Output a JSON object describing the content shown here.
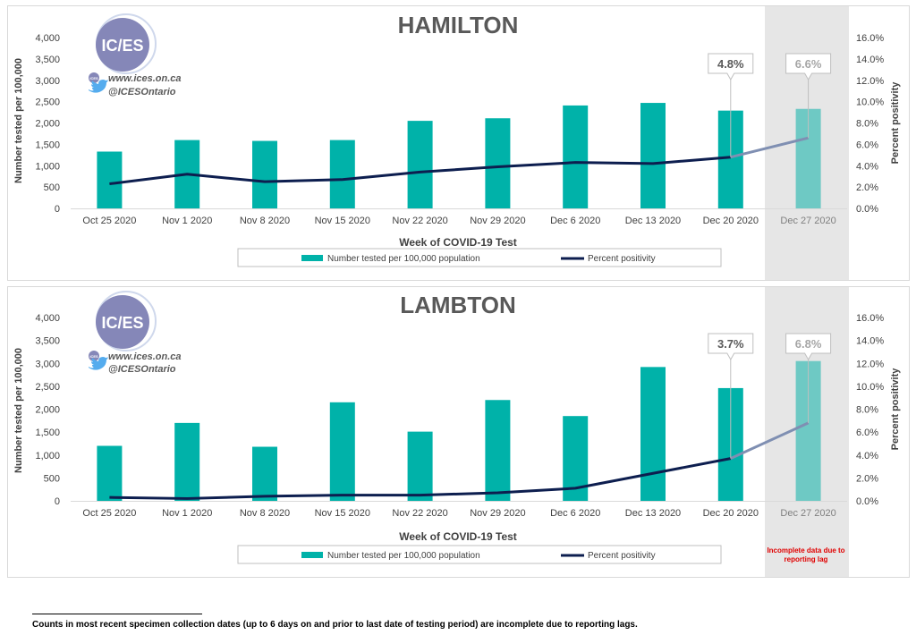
{
  "legend": {
    "bar_label": "Number tested per 100,000 population",
    "line_label": "Percent positivity"
  },
  "logo": {
    "text": "IC/ES",
    "website": "www.ices.on.ca",
    "twitter": "@ICESOntario",
    "small_badge": "ICES"
  },
  "incomplete_note": "Incomplete data due to reporting lag",
  "footnote": "Counts in most recent specimen collection dates (up to 6 days on and prior to last date of testing period) are incomplete due to reporting lags.",
  "colors": {
    "bar": "#00b2a9",
    "bar_incomplete": "#6ec9c4",
    "line": "#0d1e4f",
    "line_incomplete": "#7f8fb2",
    "shade": "#e6e6e6",
    "title": "#595959",
    "callout": "#595959",
    "callout_incomplete": "#a6a6a6",
    "inc_note": "#e00000"
  },
  "chart_data": [
    {
      "type": "bar",
      "title": "HAMILTON",
      "xlabel": "Week of COVID-19 Test",
      "ylabel": "Number tested per 100,000",
      "y2label": "Percent positivity",
      "ylim": [
        0,
        4000
      ],
      "y2lim": [
        0,
        16
      ],
      "yticks": [
        "0",
        "500",
        "1,000",
        "1,500",
        "2,000",
        "2,500",
        "3,000",
        "3,500",
        "4,000"
      ],
      "y2ticks": [
        "0.0%",
        "2.0%",
        "4.0%",
        "6.0%",
        "8.0%",
        "10.0%",
        "12.0%",
        "14.0%",
        "16.0%"
      ],
      "categories": [
        "Oct 25 2020",
        "Nov 1 2020",
        "Nov 8 2020",
        "Nov 15 2020",
        "Nov 22 2020",
        "Nov 29 2020",
        "Dec 6 2020",
        "Dec 13 2020",
        "Dec 20 2020",
        "Dec 27 2020"
      ],
      "incomplete_category": "Dec 27 2020",
      "series": [
        {
          "name": "Number tested per 100,000 population",
          "type": "bar",
          "axis": "left",
          "values": [
            1330,
            1600,
            1580,
            1600,
            2050,
            2110,
            2410,
            2470,
            2290,
            2330
          ]
        },
        {
          "name": "Percent positivity",
          "type": "line",
          "axis": "right",
          "values": [
            2.3,
            3.2,
            2.5,
            2.7,
            3.4,
            3.9,
            4.3,
            4.2,
            4.8,
            6.6
          ]
        }
      ],
      "callouts": [
        {
          "category": "Dec 20 2020",
          "text": "4.8%"
        },
        {
          "category": "Dec 27 2020",
          "text": "6.6%"
        }
      ]
    },
    {
      "type": "bar",
      "title": "LAMBTON",
      "xlabel": "Week of COVID-19 Test",
      "ylabel": "Number tested per 100,000",
      "y2label": "Percent positivity",
      "ylim": [
        0,
        4000
      ],
      "y2lim": [
        0,
        16
      ],
      "yticks": [
        "0",
        "500",
        "1,000",
        "1,500",
        "2,000",
        "2,500",
        "3,000",
        "3,500",
        "4,000"
      ],
      "y2ticks": [
        "0.0%",
        "2.0%",
        "4.0%",
        "6.0%",
        "8.0%",
        "10.0%",
        "12.0%",
        "14.0%",
        "16.0%"
      ],
      "categories": [
        "Oct 25 2020",
        "Nov 1 2020",
        "Nov 8 2020",
        "Nov 15 2020",
        "Nov 22 2020",
        "Nov 29 2020",
        "Dec 6 2020",
        "Dec 13 2020",
        "Dec 20 2020",
        "Dec 27 2020"
      ],
      "incomplete_category": "Dec 27 2020",
      "series": [
        {
          "name": "Number tested per 100,000 population",
          "type": "bar",
          "axis": "left",
          "values": [
            1200,
            1700,
            1180,
            2150,
            1510,
            2200,
            1850,
            2920,
            2460,
            3050
          ]
        },
        {
          "name": "Percent positivity",
          "type": "line",
          "axis": "right",
          "values": [
            0.3,
            0.2,
            0.4,
            0.5,
            0.5,
            0.7,
            1.1,
            2.4,
            3.7,
            6.8
          ]
        }
      ],
      "callouts": [
        {
          "category": "Dec 20 2020",
          "text": "3.7%"
        },
        {
          "category": "Dec 27 2020",
          "text": "6.8%"
        }
      ]
    }
  ]
}
